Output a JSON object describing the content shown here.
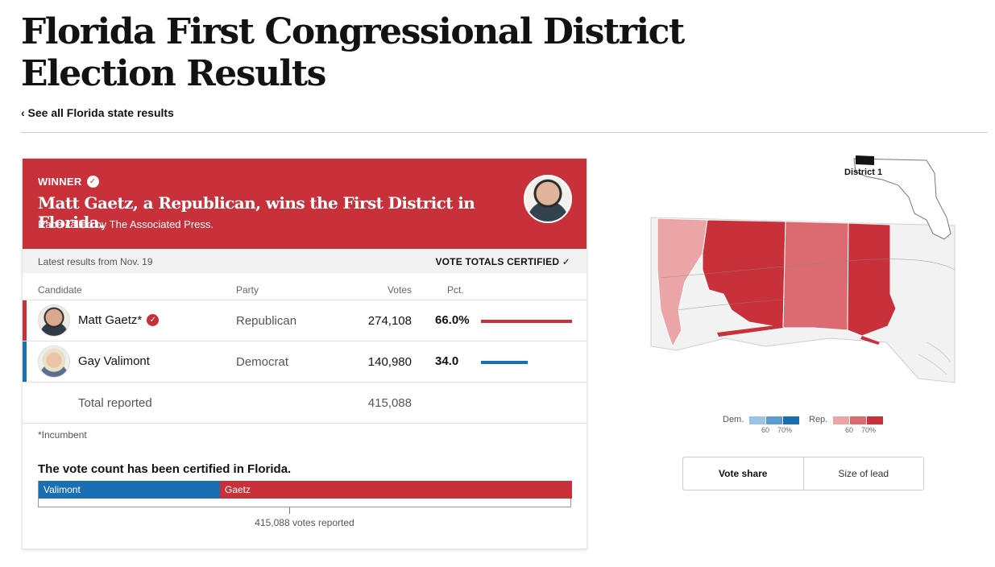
{
  "page": {
    "title": "Florida First Congressional District Election Results",
    "back_link": "‹ See all Florida state results"
  },
  "winner": {
    "label": "WINNER",
    "headline": "Matt Gaetz, a Republican, wins the First District in Florida.",
    "called_by": "Race called by The Associated Press."
  },
  "status": {
    "latest": "Latest results from Nov. 19",
    "certified": "VOTE TOTALS CERTIFIED ✓"
  },
  "table": {
    "headers": {
      "candidate": "Candidate",
      "party": "Party",
      "votes": "Votes",
      "pct": "Pct."
    },
    "rows": [
      {
        "name": "Matt Gaetz*",
        "party": "Republican",
        "votes": "274,108",
        "pct": "66.0%",
        "share": 0.66,
        "color": "#c8313a",
        "winner": true
      },
      {
        "name": "Gay Valimont",
        "party": "Democrat",
        "votes": "140,980",
        "pct": "34.0",
        "share": 0.34,
        "color": "#1a6fb3",
        "winner": false
      }
    ],
    "total": {
      "label": "Total reported",
      "votes": "415,088"
    }
  },
  "footnote": "*Incumbent",
  "vote_count": {
    "note": "The vote count has been certified in Florida.",
    "segments": [
      {
        "label": "Valimont",
        "share": 0.34,
        "color": "#1a6fb3"
      },
      {
        "label": "Gaetz",
        "share": 0.66,
        "color": "#c8313a"
      }
    ],
    "reported": "415,088 votes reported"
  },
  "map": {
    "inset_label": "District 1",
    "legend": {
      "dem_label": "Dem.",
      "rep_label": "Rep.",
      "dem_colors": [
        "#9cc3e5",
        "#5c9ad1",
        "#1a6fb3"
      ],
      "rep_colors": [
        "#eba5a7",
        "#db6b70",
        "#c8313a"
      ],
      "tick_60": "60",
      "tick_70": "70%"
    },
    "toggle": {
      "vote_share": "Vote share",
      "size_of_lead": "Size of lead"
    }
  }
}
